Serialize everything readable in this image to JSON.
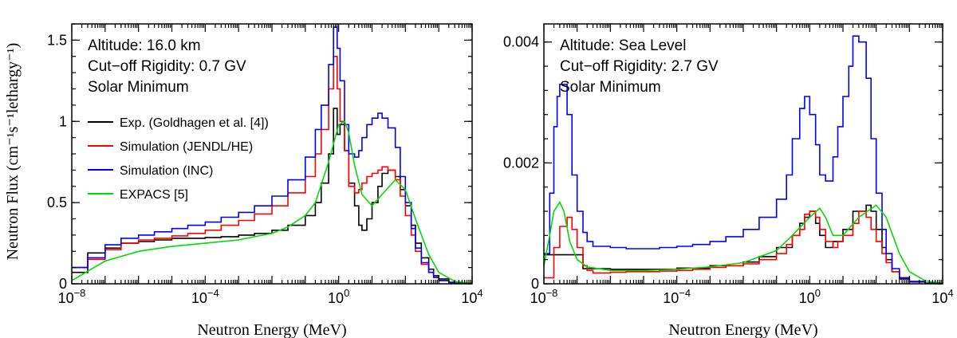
{
  "ylabel": "Neutron Flux (cm⁻¹s⁻¹lethargy⁻¹)",
  "chart_data": [
    {
      "type": "line",
      "xlabel": "Neutron Energy (MeV)",
      "xscale": "log",
      "xlim": [
        1e-08,
        10000
      ],
      "ylim": [
        0,
        1.6
      ],
      "xticks": [
        {
          "v": 1e-08,
          "b": "10",
          "e": "−8"
        },
        {
          "v": 0.0001,
          "b": "10",
          "e": "−4"
        },
        {
          "v": 1,
          "b": "10",
          "e": "0"
        },
        {
          "v": 10000,
          "b": "10",
          "e": "4"
        }
      ],
      "yticks": [
        {
          "v": 0,
          "t": "0"
        },
        {
          "v": 0.5,
          "t": "0.5"
        },
        {
          "v": 1,
          "t": "1"
        },
        {
          "v": 1.5,
          "t": "1.5"
        }
      ],
      "annotations": [
        "Altitude: 16.0 km",
        "Cut−off Rigidity: 0.7 GV",
        "Solar Minimum"
      ],
      "legend_position": "middle-left",
      "series": [
        {
          "name": "Exp. (Goldhagen et al. [4])",
          "color": "#000000",
          "step": true,
          "x": [
            1e-08,
            2.5e-08,
            3e-08,
            1e-07,
            3e-07,
            1e-06,
            3e-06,
            1e-05,
            3e-05,
            0.0001,
            0.0003,
            0.001,
            0.003,
            0.01,
            0.03,
            0.1,
            0.2,
            0.3,
            0.5,
            0.7,
            0.9,
            1.1,
            1.5,
            2,
            3,
            4,
            5,
            7,
            10,
            15,
            20,
            30,
            50,
            70,
            100,
            150,
            200,
            300,
            500,
            700,
            1000,
            2000,
            3000,
            5000
          ],
          "y": [
            0.07,
            0.07,
            0.19,
            0.22,
            0.25,
            0.26,
            0.27,
            0.28,
            0.28,
            0.285,
            0.29,
            0.3,
            0.31,
            0.33,
            0.36,
            0.42,
            0.5,
            0.62,
            0.8,
            1.08,
            0.92,
            0.98,
            0.82,
            0.62,
            0.48,
            0.36,
            0.33,
            0.4,
            0.5,
            0.6,
            0.68,
            0.7,
            0.66,
            0.58,
            0.48,
            0.36,
            0.25,
            0.16,
            0.09,
            0.05,
            0.03,
            0.01,
            0.004,
            0.002
          ]
        },
        {
          "name": "Simulation (JENDL/HE)",
          "color": "#ff0000",
          "step": true,
          "x": [
            1e-08,
            3e-08,
            1e-07,
            3e-07,
            1e-06,
            3e-06,
            1e-05,
            3e-05,
            0.0001,
            0.0003,
            0.001,
            0.003,
            0.01,
            0.03,
            0.1,
            0.2,
            0.3,
            0.5,
            0.7,
            0.9,
            1.1,
            1.5,
            2,
            3,
            4,
            5,
            7,
            10,
            15,
            20,
            30,
            50,
            70,
            100,
            150,
            200,
            300,
            500,
            700,
            1000,
            2000,
            3000,
            5000
          ],
          "y": [
            0.1,
            0.15,
            0.21,
            0.25,
            0.27,
            0.28,
            0.295,
            0.31,
            0.33,
            0.36,
            0.39,
            0.43,
            0.48,
            0.56,
            0.66,
            0.8,
            0.95,
            1.2,
            1.4,
            1.2,
            1.0,
            0.82,
            0.6,
            0.56,
            0.58,
            0.62,
            0.66,
            0.68,
            0.7,
            0.72,
            0.7,
            0.64,
            0.54,
            0.42,
            0.3,
            0.2,
            0.12,
            0.07,
            0.04,
            0.02,
            0.008,
            0.004,
            0.002
          ]
        },
        {
          "name": "Simulation (INC)",
          "color": "#0000ff",
          "step": true,
          "x": [
            1e-08,
            3e-08,
            1e-07,
            3e-07,
            1e-06,
            3e-06,
            1e-05,
            3e-05,
            0.0001,
            0.0003,
            0.001,
            0.003,
            0.01,
            0.03,
            0.1,
            0.2,
            0.3,
            0.5,
            0.7,
            0.9,
            1.1,
            1.5,
            2,
            3,
            4,
            5,
            7,
            10,
            15,
            20,
            30,
            50,
            70,
            100,
            150,
            200,
            300,
            500,
            700,
            1000,
            2000,
            3000,
            5000
          ],
          "y": [
            0.1,
            0.16,
            0.24,
            0.28,
            0.3,
            0.32,
            0.34,
            0.36,
            0.38,
            0.41,
            0.44,
            0.48,
            0.54,
            0.64,
            0.78,
            0.95,
            1.1,
            1.35,
            1.58,
            1.45,
            1.25,
            0.98,
            0.8,
            0.78,
            0.82,
            0.9,
            0.98,
            1.02,
            1.05,
            1.02,
            0.96,
            0.84,
            0.66,
            0.5,
            0.34,
            0.22,
            0.13,
            0.07,
            0.04,
            0.02,
            0.008,
            0.004,
            0.002
          ]
        },
        {
          "name": "EXPACS [5]",
          "color": "#00dd00",
          "step": false,
          "x": [
            1e-08,
            1e-07,
            1e-06,
            1e-05,
            0.0001,
            0.001,
            0.003,
            0.01,
            0.03,
            0.1,
            0.2,
            0.5,
            1,
            1.5,
            2,
            3,
            5,
            10,
            20,
            50,
            100,
            200,
            500,
            1000,
            3000,
            10000
          ],
          "y": [
            0.02,
            0.14,
            0.2,
            0.23,
            0.25,
            0.27,
            0.29,
            0.31,
            0.35,
            0.42,
            0.5,
            0.75,
            0.98,
            1.0,
            0.93,
            0.73,
            0.55,
            0.48,
            0.55,
            0.64,
            0.58,
            0.4,
            0.18,
            0.07,
            0.015,
            0.002
          ]
        }
      ]
    },
    {
      "type": "line",
      "xlabel": "Neutron Energy (MeV)",
      "xscale": "log",
      "xlim": [
        1e-08,
        10000
      ],
      "ylim": [
        0,
        0.0043
      ],
      "xticks": [
        {
          "v": 1e-08,
          "b": "10",
          "e": "−8"
        },
        {
          "v": 0.0001,
          "b": "10",
          "e": "−4"
        },
        {
          "v": 1,
          "b": "10",
          "e": "0"
        },
        {
          "v": 10000,
          "b": "10",
          "e": "4"
        }
      ],
      "yticks": [
        {
          "v": 0,
          "t": "0"
        },
        {
          "v": 0.002,
          "t": "0.002"
        },
        {
          "v": 0.004,
          "t": "0.004"
        }
      ],
      "annotations": [
        "Altitude: Sea Level",
        "Cut−off Rigidity: 2.7 GV",
        "Solar Minimum"
      ],
      "series": [
        {
          "name": "Exp. (Goldhagen et al. [4])",
          "color": "#000000",
          "step": true,
          "x": [
            1e-08,
            1e-07,
            1.5e-07,
            1e-06,
            1e-05,
            0.0001,
            0.001,
            0.01,
            0.03,
            0.1,
            0.3,
            0.5,
            0.7,
            1,
            1.5,
            2,
            3,
            5,
            10,
            20,
            50,
            70,
            100,
            150,
            200,
            300,
            500,
            1000,
            3000,
            5000
          ],
          "y": [
            0.00048,
            0.00048,
            0.00025,
            0.00024,
            0.00024,
            0.00026,
            0.0003,
            0.00036,
            0.00045,
            0.0006,
            0.0008,
            0.001,
            0.0011,
            0.0012,
            0.001,
            0.0008,
            0.0006,
            0.0007,
            0.0009,
            0.0012,
            0.0013,
            0.0012,
            0.0009,
            0.0006,
            0.0004,
            0.0002,
            8e-05,
            3e-05,
            1e-05,
            5e-06
          ]
        },
        {
          "name": "Simulation (JENDL/HE)",
          "color": "#ff0000",
          "step": true,
          "x": [
            1e-08,
            2e-08,
            3e-08,
            5e-08,
            7e-08,
            1e-07,
            1.5e-07,
            2e-07,
            3e-07,
            1e-06,
            3e-06,
            1e-05,
            3e-05,
            0.0001,
            0.0003,
            0.001,
            0.003,
            0.01,
            0.03,
            0.1,
            0.2,
            0.3,
            0.5,
            0.7,
            1,
            1.5,
            2,
            3,
            5,
            7,
            10,
            20,
            30,
            50,
            70,
            100,
            150,
            200,
            300,
            500,
            1000,
            3000,
            5000
          ],
          "y": [
            0.0001,
            0.0006,
            0.00095,
            0.0011,
            0.0009,
            0.0006,
            0.0003,
            0.00022,
            0.00018,
            0.00019,
            0.0002,
            0.0002,
            0.00021,
            0.00022,
            0.00024,
            0.00027,
            0.0003,
            0.00033,
            0.0004,
            0.0005,
            0.00065,
            0.0008,
            0.0009,
            0.00115,
            0.0012,
            0.0011,
            0.0009,
            0.0007,
            0.0006,
            0.0007,
            0.0008,
            0.001,
            0.0012,
            0.0011,
            0.0009,
            0.0007,
            0.0005,
            0.00035,
            0.0002,
            0.0001,
            4e-05,
            1e-05,
            5e-06
          ]
        },
        {
          "name": "Simulation (INC)",
          "color": "#0000ff",
          "step": true,
          "x": [
            1e-08,
            1.5e-08,
            2e-08,
            2.5e-08,
            3e-08,
            5e-08,
            7e-08,
            1e-07,
            1.5e-07,
            2e-07,
            3e-07,
            1e-06,
            3e-06,
            1e-05,
            3e-05,
            0.0001,
            0.0003,
            0.001,
            0.003,
            0.01,
            0.03,
            0.1,
            0.2,
            0.3,
            0.5,
            0.7,
            1,
            1.5,
            2,
            3,
            5,
            7,
            10,
            15,
            20,
            30,
            50,
            70,
            100,
            150,
            200,
            300,
            500,
            1000,
            3000,
            5000
          ],
          "y": [
            0.0005,
            0.0015,
            0.0026,
            0.0031,
            0.0033,
            0.0028,
            0.0018,
            0.0012,
            0.00085,
            0.0007,
            0.00062,
            0.0006,
            0.00058,
            0.00058,
            0.0006,
            0.00062,
            0.00065,
            0.0007,
            0.00078,
            0.0009,
            0.0011,
            0.0014,
            0.0018,
            0.0024,
            0.0029,
            0.0031,
            0.0028,
            0.0023,
            0.0018,
            0.0017,
            0.0021,
            0.0026,
            0.0031,
            0.0036,
            0.0041,
            0.004,
            0.0034,
            0.0024,
            0.0015,
            0.0009,
            0.0005,
            0.00025,
            0.0001,
            4e-05,
            1e-05,
            5e-06
          ]
        },
        {
          "name": "EXPACS [5]",
          "color": "#00dd00",
          "step": false,
          "x": [
            1e-08,
            1.5e-08,
            2e-08,
            3e-08,
            4e-08,
            6e-08,
            1e-07,
            2e-07,
            1e-06,
            1e-05,
            0.0001,
            0.001,
            0.01,
            0.1,
            0.3,
            1,
            2,
            3,
            5,
            10,
            30,
            100,
            200,
            500,
            1000,
            3000,
            10000
          ],
          "y": [
            0.0003,
            0.0008,
            0.0012,
            0.00135,
            0.0012,
            0.0007,
            0.0004,
            0.00028,
            0.00022,
            0.00022,
            0.00024,
            0.00028,
            0.00035,
            0.00055,
            0.0008,
            0.0011,
            0.00125,
            0.0011,
            0.0008,
            0.0008,
            0.0011,
            0.0013,
            0.0011,
            0.0005,
            0.0002,
            5e-05,
            5e-06
          ]
        }
      ]
    }
  ]
}
